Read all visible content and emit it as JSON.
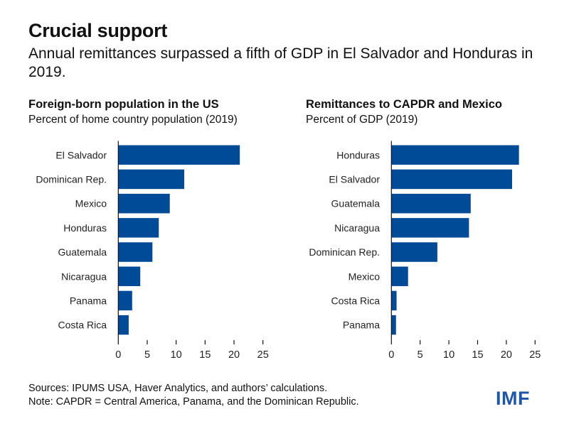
{
  "header": {
    "title": "Crucial support",
    "subtitle": "Annual remittances surpassed a fifth of GDP in El Salvador and Honduras in 2019."
  },
  "footer": {
    "sources": "Sources: IPUMS USA, Haver Analytics, and authors’ calculations.",
    "note": "Note: CAPDR = Central America, Panama, and the Dominican Republic.",
    "logo": "IMF"
  },
  "colors": {
    "bar": "#004b97",
    "axis": "#111111",
    "logo": "#1f56a7"
  },
  "chart_data": [
    {
      "type": "bar",
      "orientation": "horizontal",
      "title": "Foreign-born population in the US",
      "subtitle": "Percent of home country population (2019)",
      "categories": [
        "El Salvador",
        "Dominican Rep.",
        "Mexico",
        "Honduras",
        "Guatemala",
        "Nicaragua",
        "Panama",
        "Costa Rica"
      ],
      "values": [
        21.0,
        11.4,
        8.9,
        7.0,
        5.9,
        3.8,
        2.4,
        1.8
      ],
      "xlim": [
        0,
        25
      ],
      "xticks": [
        "0",
        "5",
        "10",
        "15",
        "20",
        "25"
      ],
      "xlabel": "",
      "ylabel": "",
      "grid": false,
      "legend": "none"
    },
    {
      "type": "bar",
      "orientation": "horizontal",
      "title": "Remittances to CAPDR and Mexico",
      "subtitle": "Percent of GDP (2019)",
      "categories": [
        "Honduras",
        "El Salvador",
        "Guatemala",
        "Nicaragua",
        "Dominican Rep.",
        "Mexico",
        "Costa Rica",
        "Panama"
      ],
      "values": [
        22.2,
        21.0,
        13.8,
        13.5,
        8.0,
        2.9,
        0.9,
        0.8
      ],
      "xlim": [
        0,
        25
      ],
      "xticks": [
        "0",
        "5",
        "10",
        "15",
        "20",
        "25"
      ],
      "xlabel": "",
      "ylabel": "",
      "grid": false,
      "legend": "none"
    }
  ]
}
